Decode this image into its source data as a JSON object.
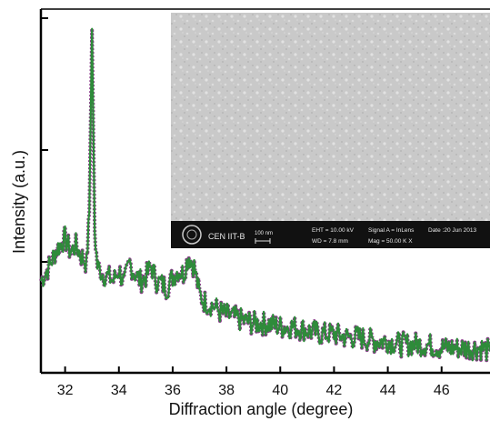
{
  "chart_data": {
    "type": "line",
    "title": "",
    "xlabel": "Diffraction angle (degree)",
    "ylabel": "Intensity (a.u.)",
    "xlim": [
      31.1,
      47.8
    ],
    "ylim": [
      0,
      100
    ],
    "xticks": [
      32,
      34,
      36,
      38,
      40,
      42,
      44,
      46
    ],
    "grid": false,
    "legend": "none",
    "colors": {
      "trace": "#2e8b3a",
      "trace_edge": "#8a3a8a"
    },
    "series": [
      {
        "x": [
          31.1,
          31.4,
          31.7,
          32.0,
          32.2,
          32.4,
          32.6,
          32.8,
          32.9,
          33.0,
          33.1,
          33.2,
          33.4,
          33.6,
          33.8,
          34.0,
          34.2,
          34.4,
          34.6,
          34.8,
          35.0,
          35.2,
          35.4,
          35.6,
          35.8,
          36.0,
          36.2,
          36.4,
          36.6,
          36.8,
          37.0,
          37.2,
          37.5,
          37.8,
          38.1,
          38.5,
          39.0,
          39.5,
          40.0,
          40.5,
          41.0,
          41.5,
          42.0,
          42.5,
          43.0,
          43.5,
          44.0,
          44.5,
          45.0,
          45.5,
          46.0,
          46.5,
          47.0,
          47.5,
          47.8
        ],
        "y": [
          26,
          30,
          35,
          38,
          34,
          36,
          33,
          31,
          45,
          97,
          40,
          30,
          28,
          27,
          26,
          29,
          25,
          31,
          28,
          26,
          27,
          30,
          26,
          25,
          24,
          27,
          29,
          28,
          33,
          30,
          22,
          20,
          19,
          17,
          16,
          15,
          14,
          14,
          13,
          13,
          12,
          11,
          11,
          10,
          10,
          9,
          9,
          8,
          8,
          8,
          7,
          7,
          7,
          7,
          6
        ]
      }
    ],
    "inset": {
      "footer": {
        "lab": "CEN IIT-B",
        "scale": "100 nm",
        "eht": "EHT = 10.00 kV",
        "wd": "WD =  7.8 mm",
        "signal": "Signal A = InLens",
        "mag": "Mag =  50.00 K X",
        "date": "Date :20 Jun 2013"
      }
    }
  }
}
